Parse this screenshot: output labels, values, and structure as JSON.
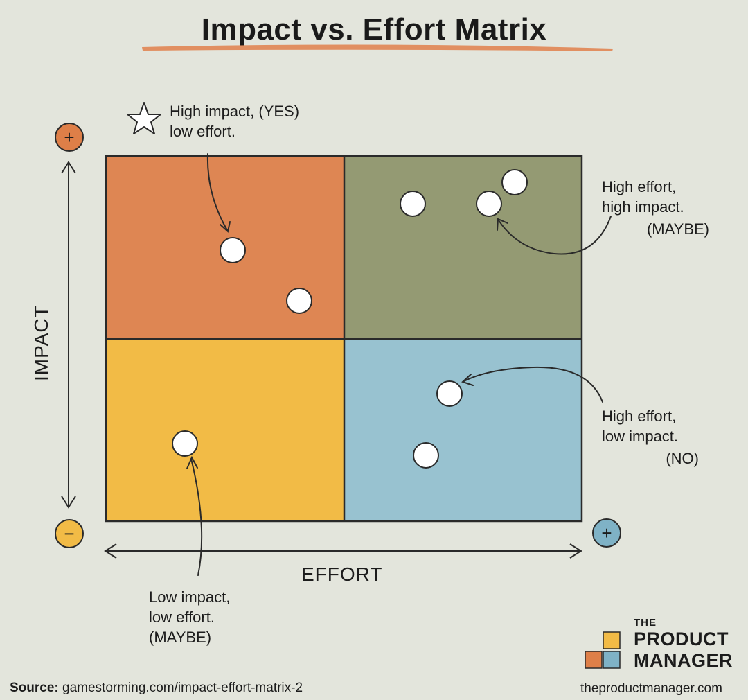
{
  "title": "Impact vs. Effort Matrix",
  "axes": {
    "y_label": "IMPACT",
    "x_label": "EFFORT",
    "plus_symbol": "+",
    "minus_symbol": "−"
  },
  "quadrants": [
    {
      "id": "high-impact-low-effort",
      "color": "#de8653",
      "line1": "High impact, (YES)",
      "line2": "low effort.",
      "line3": ""
    },
    {
      "id": "high-impact-high-effort",
      "color": "#949a73",
      "line1": "High effort,",
      "line2": "high impact.",
      "line3": "(MAYBE)"
    },
    {
      "id": "low-impact-low-effort",
      "color": "#f2bb46",
      "line1": "Low impact,",
      "line2": "low effort.",
      "line3": "(MAYBE)"
    },
    {
      "id": "low-impact-high-effort",
      "color": "#98c2d0",
      "line1": "High effort,",
      "line2": "low impact.",
      "line3": "(NO)"
    }
  ],
  "colors": {
    "background": "#e3e5dc",
    "plus_impact": "#de7f48",
    "minus": "#f2bb46",
    "plus_effort": "#7fb2c6"
  },
  "footer": {
    "source_prefix": "Source:",
    "source_url": "gamestorming.com/impact-effort-matrix-2",
    "brand_the": "THE",
    "brand_product": "PRODUCT",
    "brand_manager": "MANAGER",
    "site": "theproductmanager.com"
  }
}
